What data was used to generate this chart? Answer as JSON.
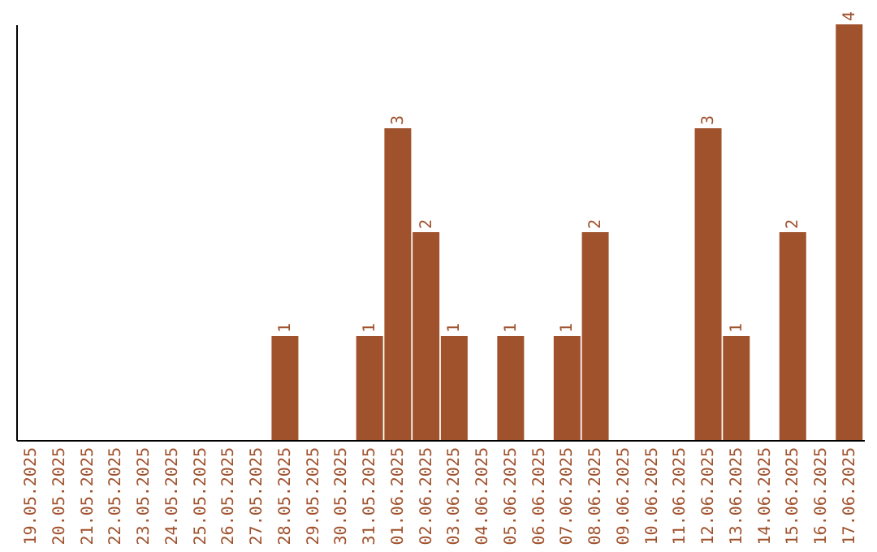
{
  "chart_data": {
    "type": "bar",
    "categories": [
      "19.05.2025",
      "20.05.2025",
      "21.05.2025",
      "22.05.2025",
      "23.05.2025",
      "24.05.2025",
      "25.05.2025",
      "26.05.2025",
      "27.05.2025",
      "28.05.2025",
      "29.05.2025",
      "30.05.2025",
      "31.05.2025",
      "01.06.2025",
      "02.06.2025",
      "03.06.2025",
      "04.06.2025",
      "05.06.2025",
      "06.06.2025",
      "07.06.2025",
      "08.06.2025",
      "09.06.2025",
      "10.06.2025",
      "11.06.2025",
      "12.06.2025",
      "13.06.2025",
      "14.06.2025",
      "15.06.2025",
      "16.06.2025",
      "17.06.2025"
    ],
    "values": [
      0,
      0,
      0,
      0,
      0,
      0,
      0,
      0,
      0,
      1,
      0,
      0,
      1,
      3,
      2,
      1,
      0,
      1,
      0,
      1,
      2,
      0,
      0,
      0,
      3,
      1,
      0,
      2,
      0,
      4
    ],
    "value_labels": [
      null,
      null,
      null,
      null,
      null,
      null,
      null,
      null,
      null,
      "1",
      null,
      null,
      "1",
      "3",
      "2",
      "1",
      null,
      "1",
      null,
      "1",
      "2",
      null,
      null,
      null,
      "3",
      "1",
      null,
      "2",
      null,
      "4"
    ],
    "color": "#a0522d"
  }
}
